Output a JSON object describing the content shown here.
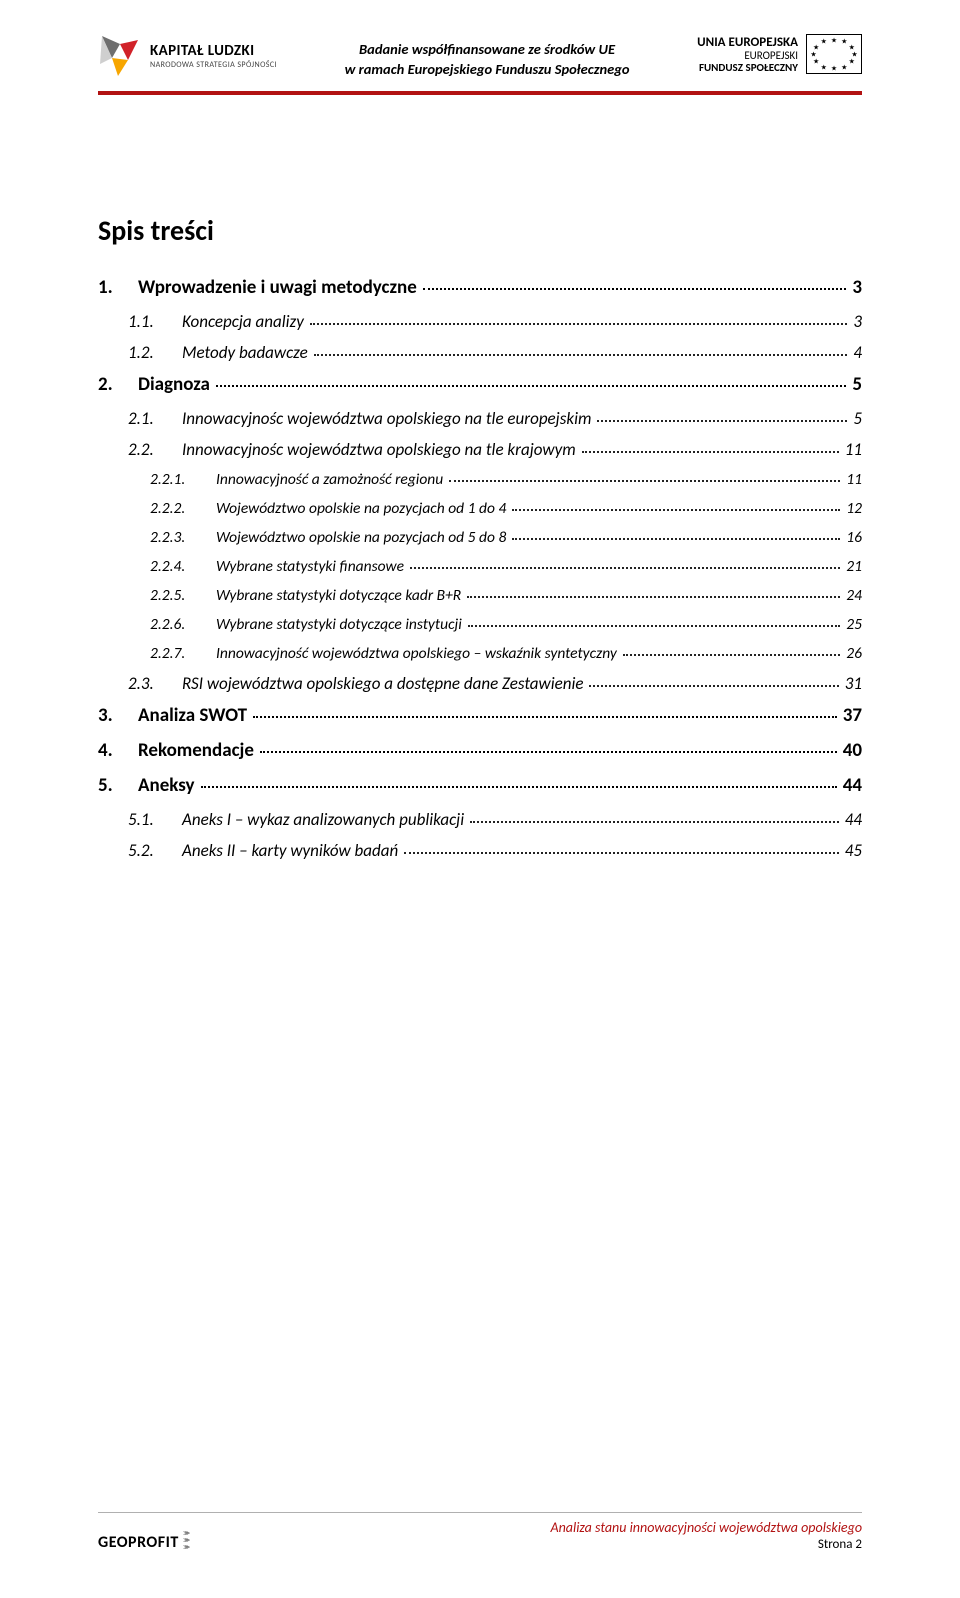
{
  "colors": {
    "accent_red": "#b21212",
    "text": "#000000",
    "bg": "#ffffff",
    "logo_colors": [
      "#d12229",
      "#f7a600",
      "#6e6e6e"
    ]
  },
  "header": {
    "left_logo": {
      "title": "KAPITAŁ LUDZKI",
      "subtitle": "NARODOWA STRATEGIA SPÓJNOŚCI"
    },
    "center_line1": "Badanie współfinansowane ze środków UE",
    "center_line2": "w ramach Europejskiego Funduszu Społecznego",
    "right_text": {
      "title": "UNIA EUROPEJSKA",
      "sub1": "EUROPEJSKI",
      "sub2": "FUNDUSZ SPOŁECZNY"
    }
  },
  "title": "Spis treści",
  "toc": [
    {
      "level": 1,
      "num": "1.",
      "label": "Wprowadzenie i uwagi metodyczne",
      "page": "3"
    },
    {
      "level": 2,
      "num": "1.1.",
      "label": "Koncepcja analizy",
      "page": "3"
    },
    {
      "level": 2,
      "num": "1.2.",
      "label": "Metody badawcze",
      "page": "4"
    },
    {
      "level": 1,
      "num": "2.",
      "label": "Diagnoza",
      "page": "5"
    },
    {
      "level": 2,
      "num": "2.1.",
      "label": "Innowacyjnośc województwa opolskiego na tle europejskim",
      "page": "5"
    },
    {
      "level": 2,
      "num": "2.2.",
      "label": "Innowacyjnośc województwa opolskiego na tle krajowym",
      "page": "11"
    },
    {
      "level": 3,
      "num": "2.2.1.",
      "label": "Innowacyjność a zamożność regionu",
      "page": "11"
    },
    {
      "level": 3,
      "num": "2.2.2.",
      "label": "Województwo opolskie na pozycjach od 1 do  4",
      "page": "12"
    },
    {
      "level": 3,
      "num": "2.2.3.",
      "label": "Województwo opolskie na pozycjach od 5 do 8",
      "page": "16"
    },
    {
      "level": 3,
      "num": "2.2.4.",
      "label": "Wybrane statystyki finansowe",
      "page": "21"
    },
    {
      "level": 3,
      "num": "2.2.5.",
      "label": "Wybrane statystyki dotyczące kadr B+R",
      "page": "24"
    },
    {
      "level": 3,
      "num": "2.2.6.",
      "label": "Wybrane statystyki dotyczące instytucji",
      "page": "25"
    },
    {
      "level": 3,
      "num": "2.2.7.",
      "label": "Innowacyjność województwa opolskiego – wskaźnik syntetyczny",
      "page": "26"
    },
    {
      "level": 2,
      "num": "2.3.",
      "label": "RSI województwa opolskiego a dostępne dane Zestawienie",
      "page": "31"
    },
    {
      "level": 1,
      "num": "3.",
      "label": "Analiza SWOT",
      "page": "37"
    },
    {
      "level": 1,
      "num": "4.",
      "label": "Rekomendacje",
      "page": "40"
    },
    {
      "level": 1,
      "num": "5.",
      "label": "Aneksy",
      "page": "44"
    },
    {
      "level": 2,
      "num": "5.1.",
      "label": "Aneks I – wykaz analizowanych publikacji",
      "page": "44"
    },
    {
      "level": 2,
      "num": "5.2.",
      "label": "Aneks II – karty wyników badań",
      "page": "45"
    }
  ],
  "footer": {
    "left_brand": "GEOPROFIT",
    "right_title": "Analiza stanu innowacyjności województwa opolskiego",
    "page_label": "Strona 2"
  }
}
